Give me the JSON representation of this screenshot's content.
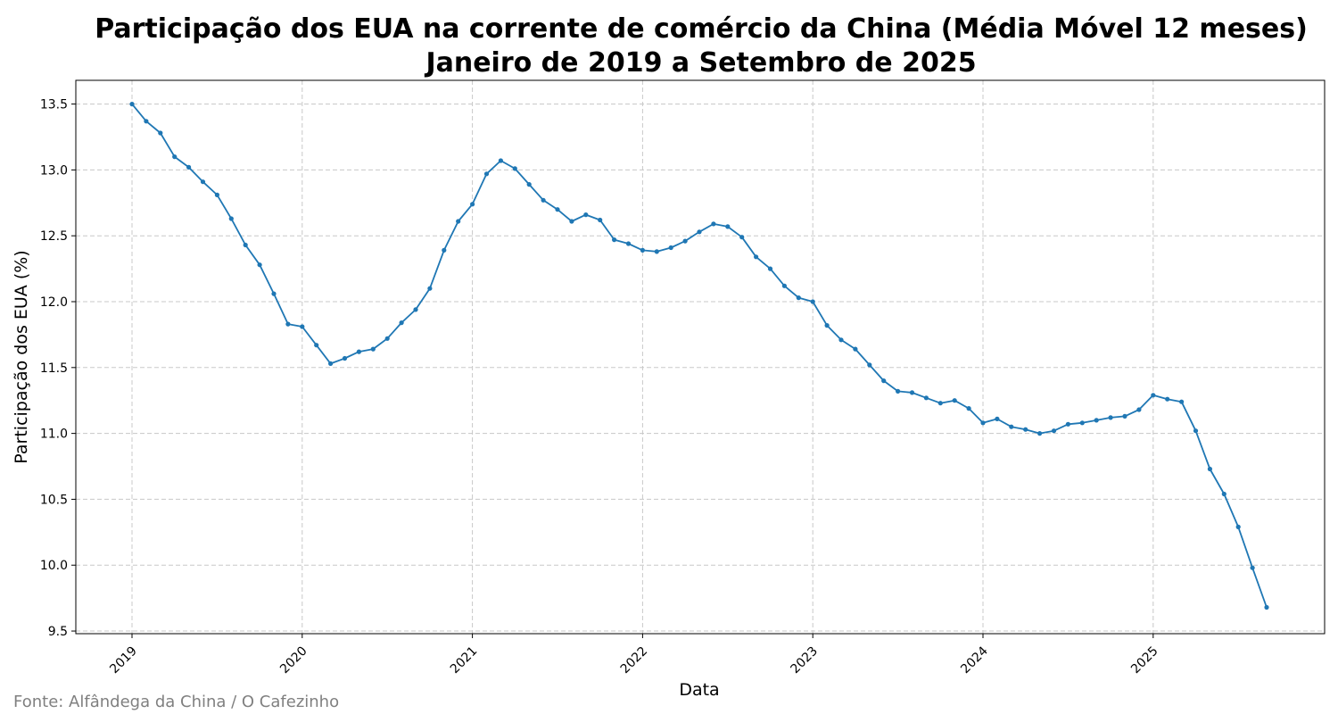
{
  "chart_data": {
    "type": "line",
    "title": "Participação dos EUA na corrente de comércio da China (Média Móvel 12 meses)",
    "subtitle": "Janeiro de 2019 a Setembro de 2025",
    "xlabel": "Data",
    "ylabel": "Participação dos EUA (%)",
    "source": "Fonte: Alfândega da China / O Cafezinho",
    "start_year": 2019,
    "start_month": 1,
    "x_ticks": [
      "2019",
      "2020",
      "2021",
      "2022",
      "2023",
      "2024",
      "2025"
    ],
    "y_ticks": [
      "9.5",
      "10.0",
      "10.5",
      "11.0",
      "11.5",
      "12.0",
      "12.5",
      "13.0",
      "13.5"
    ],
    "ylim": [
      9.48,
      13.68
    ],
    "grid": true,
    "line_color": "#1f77b4",
    "series": [
      {
        "values": [
          13.5,
          13.37,
          13.28,
          13.1,
          13.02,
          12.91,
          12.81,
          12.63,
          12.43,
          12.28,
          12.06,
          11.83,
          11.81,
          11.67,
          11.53,
          11.57,
          11.62,
          11.64,
          11.72,
          11.84,
          11.94,
          12.1,
          12.39,
          12.61,
          12.74,
          12.97,
          13.07,
          13.01,
          12.89,
          12.77,
          12.7,
          12.61,
          12.66,
          12.62,
          12.47,
          12.44,
          12.39,
          12.38,
          12.41,
          12.46,
          12.53,
          12.59,
          12.57,
          12.49,
          12.34,
          12.25,
          12.12,
          12.03,
          12.0,
          11.82,
          11.71,
          11.64,
          11.52,
          11.4,
          11.32,
          11.31,
          11.27,
          11.23,
          11.25,
          11.19,
          11.08,
          11.11,
          11.05,
          11.03,
          11.0,
          11.02,
          11.07,
          11.08,
          11.1,
          11.12,
          11.13,
          11.18,
          11.29,
          11.26,
          11.24,
          11.02,
          10.73,
          10.54,
          10.29,
          9.98,
          9.68
        ]
      }
    ]
  }
}
